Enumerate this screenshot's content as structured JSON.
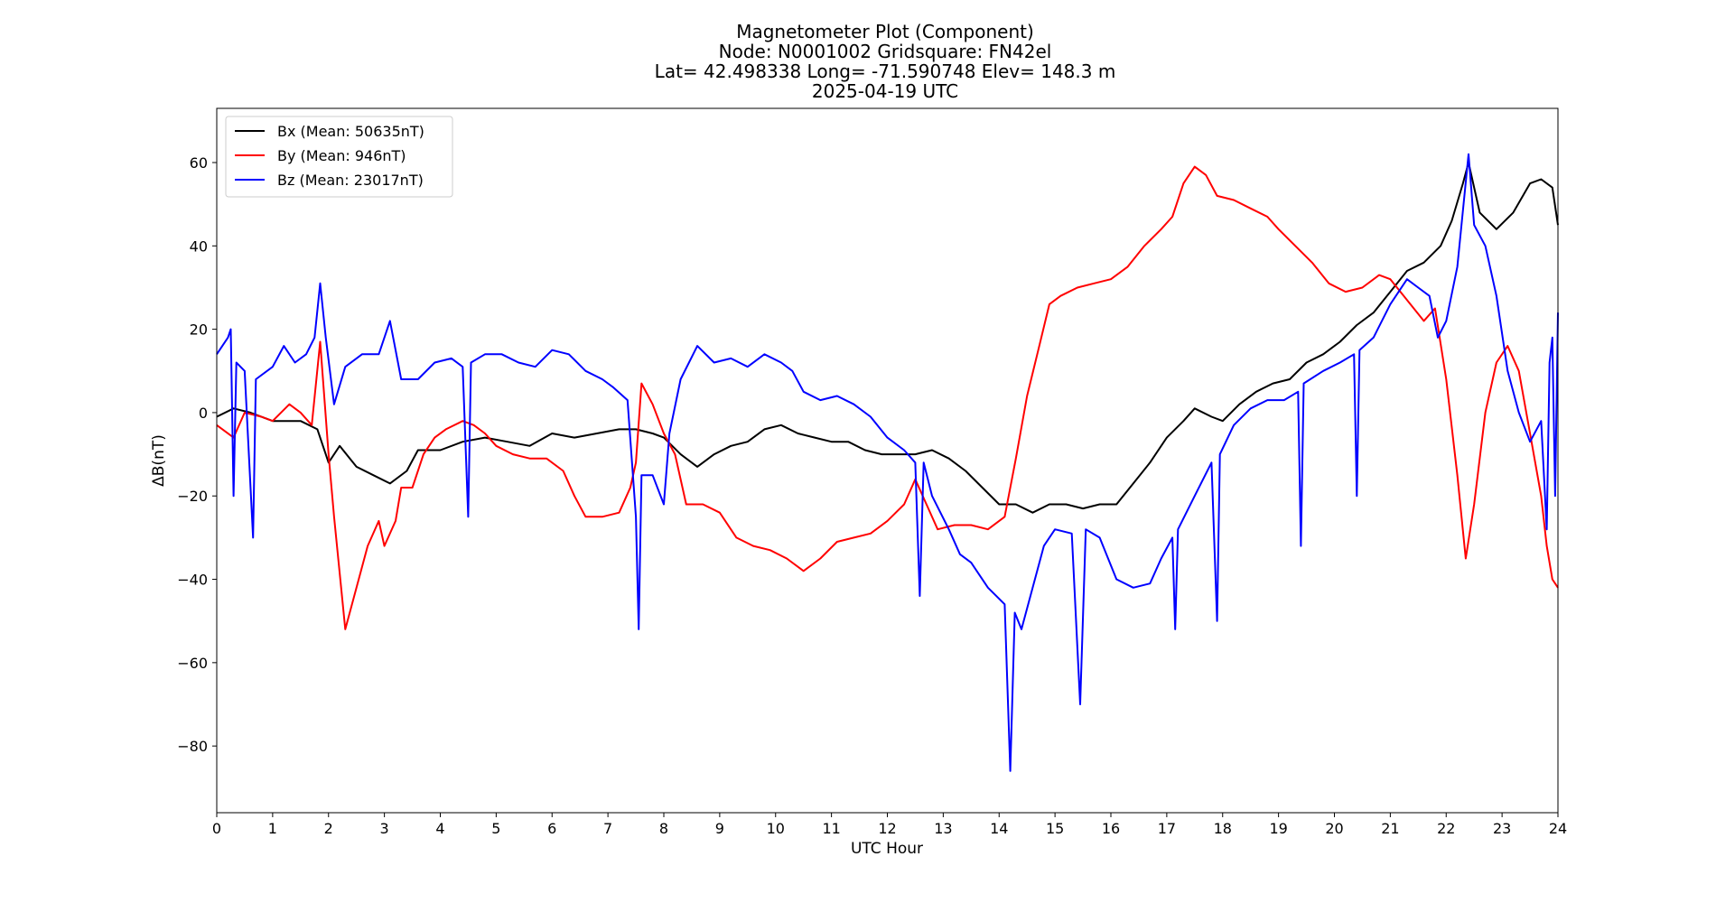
{
  "chart_data": {
    "type": "line",
    "title": [
      "Magnetometer Plot (Component)",
      "Node:  N0001002     Gridsquare:  FN42el",
      "Lat= 42.498338    Long= -71.590748    Elev= 148.3 m",
      "2025-04-19  UTC"
    ],
    "xlabel": "UTC Hour",
    "ylabel": "ΔB(nT)",
    "xlim": [
      0,
      24
    ],
    "ylim": [
      -96,
      73
    ],
    "xticks": [
      0,
      1,
      2,
      3,
      4,
      5,
      6,
      7,
      8,
      9,
      10,
      11,
      12,
      13,
      14,
      15,
      16,
      17,
      18,
      19,
      20,
      21,
      22,
      23,
      24
    ],
    "xtick_labels": [
      "0",
      "1",
      "2",
      "3",
      "4",
      "5",
      "6",
      "7",
      "8",
      "9",
      "10",
      "11",
      "12",
      "13",
      "14",
      "15",
      "16",
      "17",
      "18",
      "19",
      "20",
      "21",
      "22",
      "23",
      "24"
    ],
    "yticks": [
      60,
      40,
      20,
      0,
      -20,
      -40,
      -60,
      -80
    ],
    "ytick_labels": [
      "60",
      "40",
      "20",
      "0",
      "−20",
      "−40",
      "−60",
      "−80"
    ],
    "grid": false,
    "legend_position": "top-left",
    "series": [
      {
        "name": "Bx (Mean: 50635nT)",
        "color": "#000000",
        "points": [
          [
            0,
            -1
          ],
          [
            0.3,
            1
          ],
          [
            0.6,
            0
          ],
          [
            1.0,
            -2
          ],
          [
            1.5,
            -2
          ],
          [
            1.8,
            -4
          ],
          [
            2.0,
            -12
          ],
          [
            2.2,
            -8
          ],
          [
            2.5,
            -13
          ],
          [
            2.8,
            -15
          ],
          [
            3.1,
            -17
          ],
          [
            3.4,
            -14
          ],
          [
            3.6,
            -9
          ],
          [
            4.0,
            -9
          ],
          [
            4.4,
            -7
          ],
          [
            4.8,
            -6
          ],
          [
            5.2,
            -7
          ],
          [
            5.6,
            -8
          ],
          [
            6.0,
            -5
          ],
          [
            6.4,
            -6
          ],
          [
            6.8,
            -5
          ],
          [
            7.2,
            -4
          ],
          [
            7.5,
            -4
          ],
          [
            7.8,
            -5
          ],
          [
            8.0,
            -6
          ],
          [
            8.3,
            -10
          ],
          [
            8.6,
            -13
          ],
          [
            8.9,
            -10
          ],
          [
            9.2,
            -8
          ],
          [
            9.5,
            -7
          ],
          [
            9.8,
            -4
          ],
          [
            10.1,
            -3
          ],
          [
            10.4,
            -5
          ],
          [
            10.7,
            -6
          ],
          [
            11.0,
            -7
          ],
          [
            11.3,
            -7
          ],
          [
            11.6,
            -9
          ],
          [
            11.9,
            -10
          ],
          [
            12.2,
            -10
          ],
          [
            12.5,
            -10
          ],
          [
            12.8,
            -9
          ],
          [
            13.1,
            -11
          ],
          [
            13.4,
            -14
          ],
          [
            13.7,
            -18
          ],
          [
            14.0,
            -22
          ],
          [
            14.3,
            -22
          ],
          [
            14.6,
            -24
          ],
          [
            14.9,
            -22
          ],
          [
            15.2,
            -22
          ],
          [
            15.5,
            -23
          ],
          [
            15.8,
            -22
          ],
          [
            16.1,
            -22
          ],
          [
            16.4,
            -17
          ],
          [
            16.7,
            -12
          ],
          [
            17.0,
            -6
          ],
          [
            17.3,
            -2
          ],
          [
            17.5,
            1
          ],
          [
            17.8,
            -1
          ],
          [
            18.0,
            -2
          ],
          [
            18.3,
            2
          ],
          [
            18.6,
            5
          ],
          [
            18.9,
            7
          ],
          [
            19.2,
            8
          ],
          [
            19.5,
            12
          ],
          [
            19.8,
            14
          ],
          [
            20.1,
            17
          ],
          [
            20.4,
            21
          ],
          [
            20.7,
            24
          ],
          [
            21.0,
            29
          ],
          [
            21.3,
            34
          ],
          [
            21.6,
            36
          ],
          [
            21.9,
            40
          ],
          [
            22.1,
            46
          ],
          [
            22.3,
            55
          ],
          [
            22.4,
            60
          ],
          [
            22.6,
            48
          ],
          [
            22.9,
            44
          ],
          [
            23.2,
            48
          ],
          [
            23.5,
            55
          ],
          [
            23.7,
            56
          ],
          [
            23.9,
            54
          ],
          [
            24.0,
            45
          ]
        ]
      },
      {
        "name": "By (Mean: 946nT)",
        "color": "#ff0000",
        "points": [
          [
            0,
            -3
          ],
          [
            0.3,
            -6
          ],
          [
            0.5,
            0
          ],
          [
            0.8,
            -1
          ],
          [
            1.0,
            -2
          ],
          [
            1.3,
            2
          ],
          [
            1.5,
            0
          ],
          [
            1.7,
            -3
          ],
          [
            1.85,
            17
          ],
          [
            2.0,
            -10
          ],
          [
            2.1,
            -25
          ],
          [
            2.3,
            -52
          ],
          [
            2.5,
            -42
          ],
          [
            2.7,
            -32
          ],
          [
            2.9,
            -26
          ],
          [
            3.0,
            -32
          ],
          [
            3.2,
            -26
          ],
          [
            3.3,
            -18
          ],
          [
            3.5,
            -18
          ],
          [
            3.7,
            -10
          ],
          [
            3.9,
            -6
          ],
          [
            4.1,
            -4
          ],
          [
            4.4,
            -2
          ],
          [
            4.6,
            -3
          ],
          [
            4.8,
            -5
          ],
          [
            5.0,
            -8
          ],
          [
            5.3,
            -10
          ],
          [
            5.6,
            -11
          ],
          [
            5.9,
            -11
          ],
          [
            6.2,
            -14
          ],
          [
            6.4,
            -20
          ],
          [
            6.6,
            -25
          ],
          [
            6.9,
            -25
          ],
          [
            7.2,
            -24
          ],
          [
            7.4,
            -18
          ],
          [
            7.5,
            -12
          ],
          [
            7.6,
            7
          ],
          [
            7.8,
            2
          ],
          [
            8.0,
            -5
          ],
          [
            8.2,
            -10
          ],
          [
            8.4,
            -22
          ],
          [
            8.7,
            -22
          ],
          [
            9.0,
            -24
          ],
          [
            9.3,
            -30
          ],
          [
            9.6,
            -32
          ],
          [
            9.9,
            -33
          ],
          [
            10.2,
            -35
          ],
          [
            10.5,
            -38
          ],
          [
            10.8,
            -35
          ],
          [
            11.1,
            -31
          ],
          [
            11.4,
            -30
          ],
          [
            11.7,
            -29
          ],
          [
            12.0,
            -26
          ],
          [
            12.3,
            -22
          ],
          [
            12.5,
            -16
          ],
          [
            12.7,
            -22
          ],
          [
            12.9,
            -28
          ],
          [
            13.2,
            -27
          ],
          [
            13.5,
            -27
          ],
          [
            13.8,
            -28
          ],
          [
            14.1,
            -25
          ],
          [
            14.3,
            -11
          ],
          [
            14.5,
            4
          ],
          [
            14.7,
            15
          ],
          [
            14.9,
            26
          ],
          [
            15.1,
            28
          ],
          [
            15.4,
            30
          ],
          [
            15.7,
            31
          ],
          [
            16.0,
            32
          ],
          [
            16.3,
            35
          ],
          [
            16.6,
            40
          ],
          [
            16.9,
            44
          ],
          [
            17.1,
            47
          ],
          [
            17.3,
            55
          ],
          [
            17.5,
            59
          ],
          [
            17.7,
            57
          ],
          [
            17.9,
            52
          ],
          [
            18.2,
            51
          ],
          [
            18.5,
            49
          ],
          [
            18.8,
            47
          ],
          [
            19.0,
            44
          ],
          [
            19.3,
            40
          ],
          [
            19.6,
            36
          ],
          [
            19.9,
            31
          ],
          [
            20.2,
            29
          ],
          [
            20.5,
            30
          ],
          [
            20.8,
            33
          ],
          [
            21.0,
            32
          ],
          [
            21.3,
            27
          ],
          [
            21.6,
            22
          ],
          [
            21.8,
            25
          ],
          [
            22.0,
            8
          ],
          [
            22.2,
            -15
          ],
          [
            22.35,
            -35
          ],
          [
            22.5,
            -22
          ],
          [
            22.7,
            0
          ],
          [
            22.9,
            12
          ],
          [
            23.1,
            16
          ],
          [
            23.3,
            10
          ],
          [
            23.5,
            -5
          ],
          [
            23.7,
            -20
          ],
          [
            23.8,
            -32
          ],
          [
            23.9,
            -40
          ],
          [
            24.0,
            -42
          ]
        ]
      },
      {
        "name": "Bz (Mean: 23017nT)",
        "color": "#0000ff",
        "points": [
          [
            0,
            14
          ],
          [
            0.2,
            18
          ],
          [
            0.25,
            20
          ],
          [
            0.3,
            -20
          ],
          [
            0.35,
            12
          ],
          [
            0.5,
            10
          ],
          [
            0.65,
            -30
          ],
          [
            0.7,
            8
          ],
          [
            1.0,
            11
          ],
          [
            1.2,
            16
          ],
          [
            1.4,
            12
          ],
          [
            1.6,
            14
          ],
          [
            1.75,
            18
          ],
          [
            1.85,
            31
          ],
          [
            1.95,
            18
          ],
          [
            2.1,
            2
          ],
          [
            2.3,
            11
          ],
          [
            2.6,
            14
          ],
          [
            2.9,
            14
          ],
          [
            3.1,
            22
          ],
          [
            3.3,
            8
          ],
          [
            3.6,
            8
          ],
          [
            3.9,
            12
          ],
          [
            4.2,
            13
          ],
          [
            4.4,
            11
          ],
          [
            4.5,
            -25
          ],
          [
            4.55,
            12
          ],
          [
            4.8,
            14
          ],
          [
            5.1,
            14
          ],
          [
            5.4,
            12
          ],
          [
            5.7,
            11
          ],
          [
            6.0,
            15
          ],
          [
            6.3,
            14
          ],
          [
            6.6,
            10
          ],
          [
            6.9,
            8
          ],
          [
            7.1,
            6
          ],
          [
            7.35,
            3
          ],
          [
            7.5,
            -25
          ],
          [
            7.55,
            -52
          ],
          [
            7.6,
            -15
          ],
          [
            7.8,
            -15
          ],
          [
            8.0,
            -22
          ],
          [
            8.1,
            -5
          ],
          [
            8.3,
            8
          ],
          [
            8.6,
            16
          ],
          [
            8.9,
            12
          ],
          [
            9.2,
            13
          ],
          [
            9.5,
            11
          ],
          [
            9.8,
            14
          ],
          [
            10.1,
            12
          ],
          [
            10.3,
            10
          ],
          [
            10.5,
            5
          ],
          [
            10.8,
            3
          ],
          [
            11.1,
            4
          ],
          [
            11.4,
            2
          ],
          [
            11.7,
            -1
          ],
          [
            12.0,
            -6
          ],
          [
            12.3,
            -9
          ],
          [
            12.5,
            -12
          ],
          [
            12.58,
            -44
          ],
          [
            12.65,
            -12
          ],
          [
            12.8,
            -20
          ],
          [
            13.1,
            -28
          ],
          [
            13.3,
            -34
          ],
          [
            13.5,
            -36
          ],
          [
            13.8,
            -42
          ],
          [
            14.1,
            -46
          ],
          [
            14.2,
            -86
          ],
          [
            14.28,
            -48
          ],
          [
            14.4,
            -52
          ],
          [
            14.6,
            -42
          ],
          [
            14.8,
            -32
          ],
          [
            15.0,
            -28
          ],
          [
            15.3,
            -29
          ],
          [
            15.45,
            -70
          ],
          [
            15.55,
            -28
          ],
          [
            15.8,
            -30
          ],
          [
            16.1,
            -40
          ],
          [
            16.4,
            -42
          ],
          [
            16.7,
            -41
          ],
          [
            16.9,
            -35
          ],
          [
            17.1,
            -30
          ],
          [
            17.15,
            -52
          ],
          [
            17.2,
            -28
          ],
          [
            17.5,
            -20
          ],
          [
            17.8,
            -12
          ],
          [
            17.9,
            -50
          ],
          [
            17.95,
            -10
          ],
          [
            18.2,
            -3
          ],
          [
            18.5,
            1
          ],
          [
            18.8,
            3
          ],
          [
            19.1,
            3
          ],
          [
            19.35,
            5
          ],
          [
            19.4,
            -32
          ],
          [
            19.45,
            7
          ],
          [
            19.8,
            10
          ],
          [
            20.1,
            12
          ],
          [
            20.35,
            14
          ],
          [
            20.4,
            -20
          ],
          [
            20.45,
            15
          ],
          [
            20.7,
            18
          ],
          [
            21.0,
            26
          ],
          [
            21.3,
            32
          ],
          [
            21.5,
            30
          ],
          [
            21.7,
            28
          ],
          [
            21.85,
            18
          ],
          [
            22.0,
            22
          ],
          [
            22.2,
            35
          ],
          [
            22.4,
            62
          ],
          [
            22.5,
            45
          ],
          [
            22.7,
            40
          ],
          [
            22.9,
            28
          ],
          [
            23.1,
            10
          ],
          [
            23.3,
            0
          ],
          [
            23.5,
            -7
          ],
          [
            23.7,
            -2
          ],
          [
            23.8,
            -28
          ],
          [
            23.85,
            12
          ],
          [
            23.9,
            18
          ],
          [
            23.95,
            -20
          ],
          [
            24.0,
            24
          ]
        ]
      }
    ]
  }
}
